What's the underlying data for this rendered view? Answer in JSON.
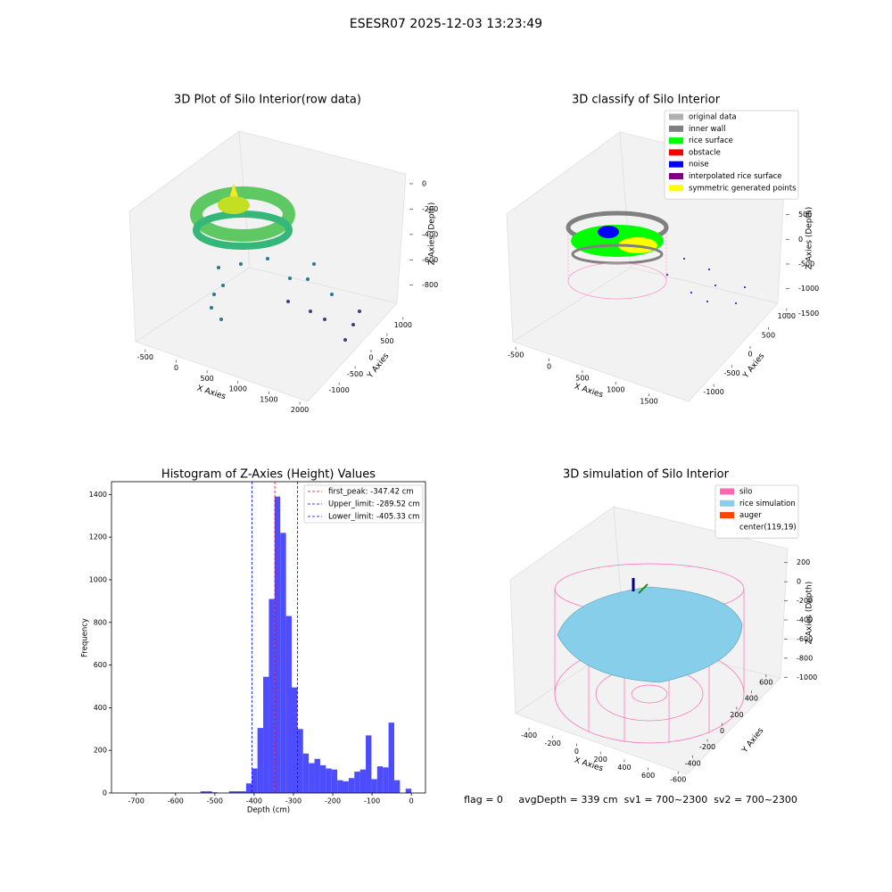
{
  "title": "ESESR07 2025-12-03 13:23:49",
  "annotation": "flag = 0     avgDepth = 339 cm  sv1 = 700~2300  sv2 = 700~2300",
  "chart_data": [
    {
      "type": "scatter3d",
      "title": "3D Plot of Silo Interior(row data)",
      "xlabel": "X Axies",
      "ylabel": "Y Axies",
      "zlabel": "Z Axies (Depth)",
      "xlim": [
        -700,
        2100
      ],
      "xticks": [
        -500,
        0,
        500,
        1000,
        1500,
        2000
      ],
      "ylim": [
        -1200,
        1200
      ],
      "yticks": [
        -1000,
        -500,
        0,
        500,
        1000
      ],
      "zlim": [
        -950,
        80
      ],
      "zticks": [
        0,
        -200,
        -400,
        -600,
        -800
      ]
    },
    {
      "type": "scatter3d",
      "title": "3D classify of Silo Interior",
      "xlabel": "X Axies",
      "ylabel": "Y Axies",
      "zlabel": "Z Axies (Depth)",
      "xlim": [
        -650,
        1800
      ],
      "xticks": [
        -500,
        0,
        500,
        1000,
        1500
      ],
      "ylim": [
        -1200,
        1200
      ],
      "yticks": [
        -1000,
        -500,
        0,
        500,
        1000
      ],
      "zlim": [
        -1800,
        700
      ],
      "zticks": [
        500,
        0,
        -500,
        -1000,
        -1500
      ],
      "legend": [
        {
          "name": "original data",
          "color": "#b0b0b0"
        },
        {
          "name": "inner wall",
          "color": "#808080"
        },
        {
          "name": "rice surface",
          "color": "#00ff00"
        },
        {
          "name": "obstacle",
          "color": "#ff0000"
        },
        {
          "name": "noise",
          "color": "#0000ff"
        },
        {
          "name": "interpolated rice surface",
          "color": "#800080"
        },
        {
          "name": "symmetric generated points",
          "color": "#ffff00"
        }
      ]
    },
    {
      "type": "histogram",
      "title": "Histogram of Z-Axies (Height) Values",
      "xlabel": "Depth (cm)",
      "ylabel": "Frequency",
      "color": "#4d4dff",
      "bins": [
        -754,
        -739.5,
        -725,
        -710.5,
        -696,
        -681.5,
        -667,
        -652.5,
        -638,
        -623.5,
        -609,
        -594.5,
        -580,
        -565.5,
        -551,
        -536.5,
        -522,
        -507.5,
        -493,
        -478.5,
        -464,
        -449.5,
        -435,
        -420.5,
        -406,
        -391.5,
        -377,
        -362.5,
        -348,
        -333.5,
        -319,
        -304.5,
        -290,
        -275.5,
        -261,
        -246.5,
        -232,
        -217.5,
        -203,
        -188.5,
        -174,
        -159.5,
        -145,
        -130.5,
        -116,
        -101.5,
        -87,
        -72.5,
        -58,
        -43.5,
        -29,
        -14.5,
        0
      ],
      "counts": [
        0,
        0,
        0,
        0,
        0,
        0,
        0,
        0,
        0,
        0,
        0,
        0,
        0,
        0,
        0,
        8,
        8,
        3,
        0,
        0,
        8,
        8,
        8,
        45,
        115,
        305,
        545,
        910,
        1390,
        1220,
        830,
        495,
        300,
        185,
        140,
        160,
        130,
        115,
        110,
        60,
        55,
        70,
        100,
        110,
        270,
        65,
        125,
        120,
        330,
        60,
        0,
        20
      ],
      "xlim": [
        -763,
        36
      ],
      "xticks": [
        -700,
        -600,
        -500,
        -400,
        -300,
        -200,
        -100,
        0
      ],
      "ylim": [
        0,
        1460
      ],
      "yticks": [
        0,
        200,
        400,
        600,
        800,
        1000,
        1200,
        1400
      ],
      "lines": [
        {
          "name": "first_peak: -347.42 cm",
          "value": -347.42,
          "color": "#ff0000"
        },
        {
          "name": "Upper_limit: -289.52 cm",
          "value": -289.52,
          "color": "#0000ff"
        },
        {
          "name": "Lower_limit: -405.33 cm",
          "value": -405.33,
          "color": "#0000ff"
        }
      ]
    },
    {
      "type": "surface3d",
      "title": "3D simulation of Silo Interior",
      "xlabel": "X Axies",
      "ylabel": "Y Axies",
      "zlabel": "Z Axies (Depth)",
      "xlim": [
        -550,
        700
      ],
      "xticks": [
        -400,
        -200,
        0,
        200,
        400,
        600
      ],
      "ylim": [
        -700,
        700
      ],
      "yticks": [
        -600,
        -400,
        -200,
        0,
        200,
        400,
        600
      ],
      "zlim": [
        -1100,
        300
      ],
      "zticks": [
        200,
        0,
        -200,
        -400,
        -600,
        -800,
        -1000
      ],
      "legend": [
        {
          "name": "silo",
          "color": "#ff69b4"
        },
        {
          "name": "rice simulation",
          "color": "#87ceeb"
        },
        {
          "name": "auger",
          "color": "#ff4500"
        },
        {
          "name": "center(119,19)"
        }
      ]
    }
  ]
}
